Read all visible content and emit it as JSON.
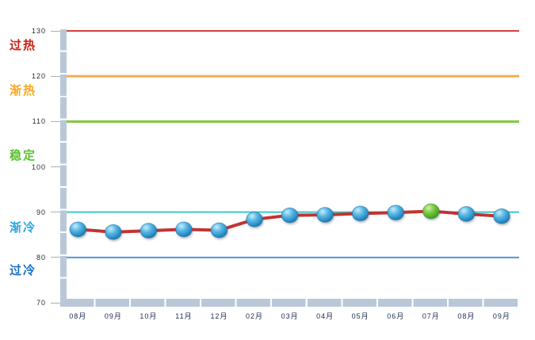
{
  "page": {
    "background": "#ffffff"
  },
  "chart_data": {
    "type": "line",
    "title": "",
    "xlabel": "",
    "ylabel": "",
    "ylim": [
      70,
      130
    ],
    "grid": false,
    "legend": "none",
    "categories": [
      "08月",
      "09月",
      "10月",
      "11月",
      "12月",
      "02月",
      "03月",
      "04月",
      "05月",
      "06月",
      "07月",
      "08月",
      "09月"
    ],
    "series": [
      {
        "name": "",
        "values": [
          86.2,
          85.6,
          85.9,
          86.2,
          86.0,
          88.4,
          89.3,
          89.4,
          89.7,
          89.9,
          90.2,
          89.6,
          89.1
        ],
        "line_color": "#c13434",
        "marker_color": "#2f9fd6",
        "highlight_index": 10,
        "highlight_marker_color": "#5cb832"
      }
    ],
    "yticks": [
      130,
      120,
      110,
      100,
      90,
      80,
      70
    ],
    "thresholds": [
      {
        "value": 130,
        "color": "#d64040"
      },
      {
        "value": 120,
        "color": "#f3ae4e"
      },
      {
        "value": 110,
        "color": "#80c73e"
      },
      {
        "value": 90,
        "color": "#3fc8c3"
      },
      {
        "value": 80,
        "color": "#4f97d6"
      }
    ],
    "zones": [
      {
        "label": "过热",
        "color": "#cc1f10"
      },
      {
        "label": "渐热",
        "color": "#f9a825"
      },
      {
        "label": "稳定",
        "color": "#5bbf30"
      },
      {
        "label": "渐冷",
        "color": "#2ba6e0"
      },
      {
        "label": "过冷",
        "color": "#1a6fc4"
      }
    ],
    "axis_color": "#b9c8d8"
  }
}
